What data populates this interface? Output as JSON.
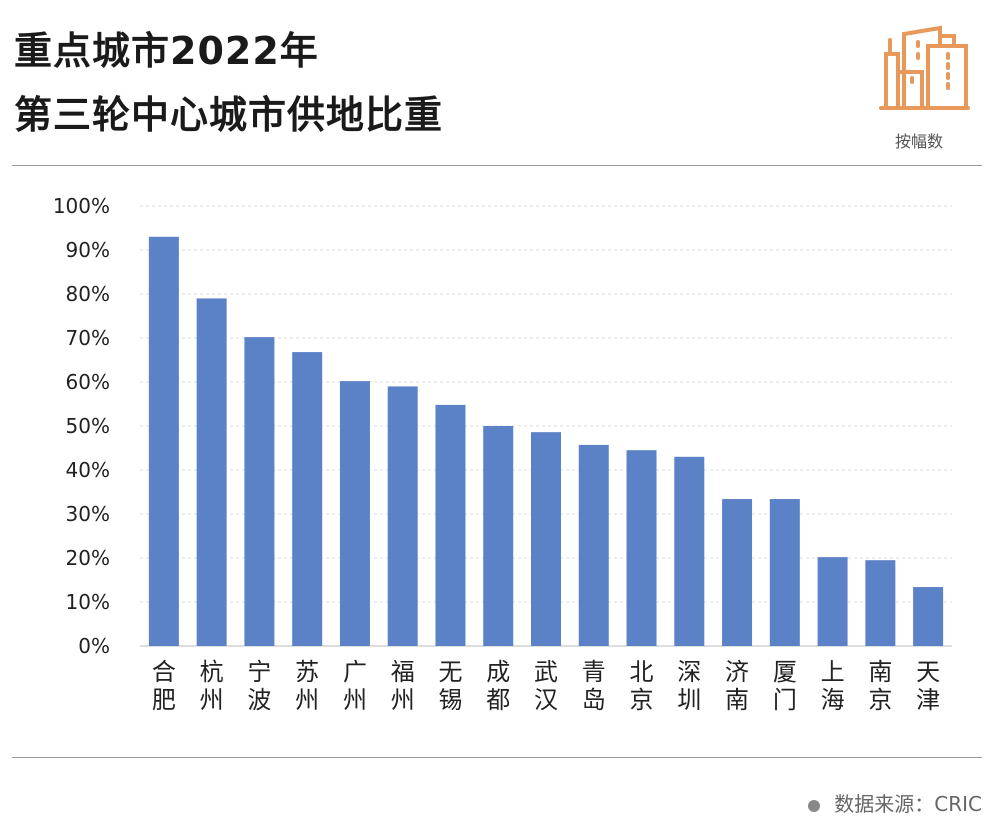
{
  "header": {
    "title_line1": "重点城市2022年",
    "title_line2": "第三轮中心城市供地比重",
    "logo_text": "按幅数"
  },
  "footer": {
    "source": "数据来源：CRIC"
  },
  "colors": {
    "bar": "#5b82c7",
    "logo": "#e8995a"
  },
  "chart_data": {
    "type": "bar",
    "title": "重点城市2022年第三轮中心城市供地比重",
    "categories": [
      "合肥",
      "杭州",
      "宁波",
      "苏州",
      "广州",
      "福州",
      "无锡",
      "成都",
      "武汉",
      "青岛",
      "北京",
      "深圳",
      "济南",
      "厦门",
      "上海",
      "南京",
      "天津"
    ],
    "values": [
      93,
      79,
      70.2,
      66.8,
      60.2,
      59,
      54.8,
      50,
      48.6,
      45.7,
      44.5,
      43,
      33.4,
      33.4,
      20.2,
      19.5,
      13.4
    ],
    "yticks": [
      "0%",
      "10%",
      "20%",
      "30%",
      "40%",
      "50%",
      "60%",
      "70%",
      "80%",
      "90%",
      "100%"
    ],
    "ylim": [
      0,
      100
    ],
    "xlabel": "",
    "ylabel": "",
    "grid": true
  }
}
